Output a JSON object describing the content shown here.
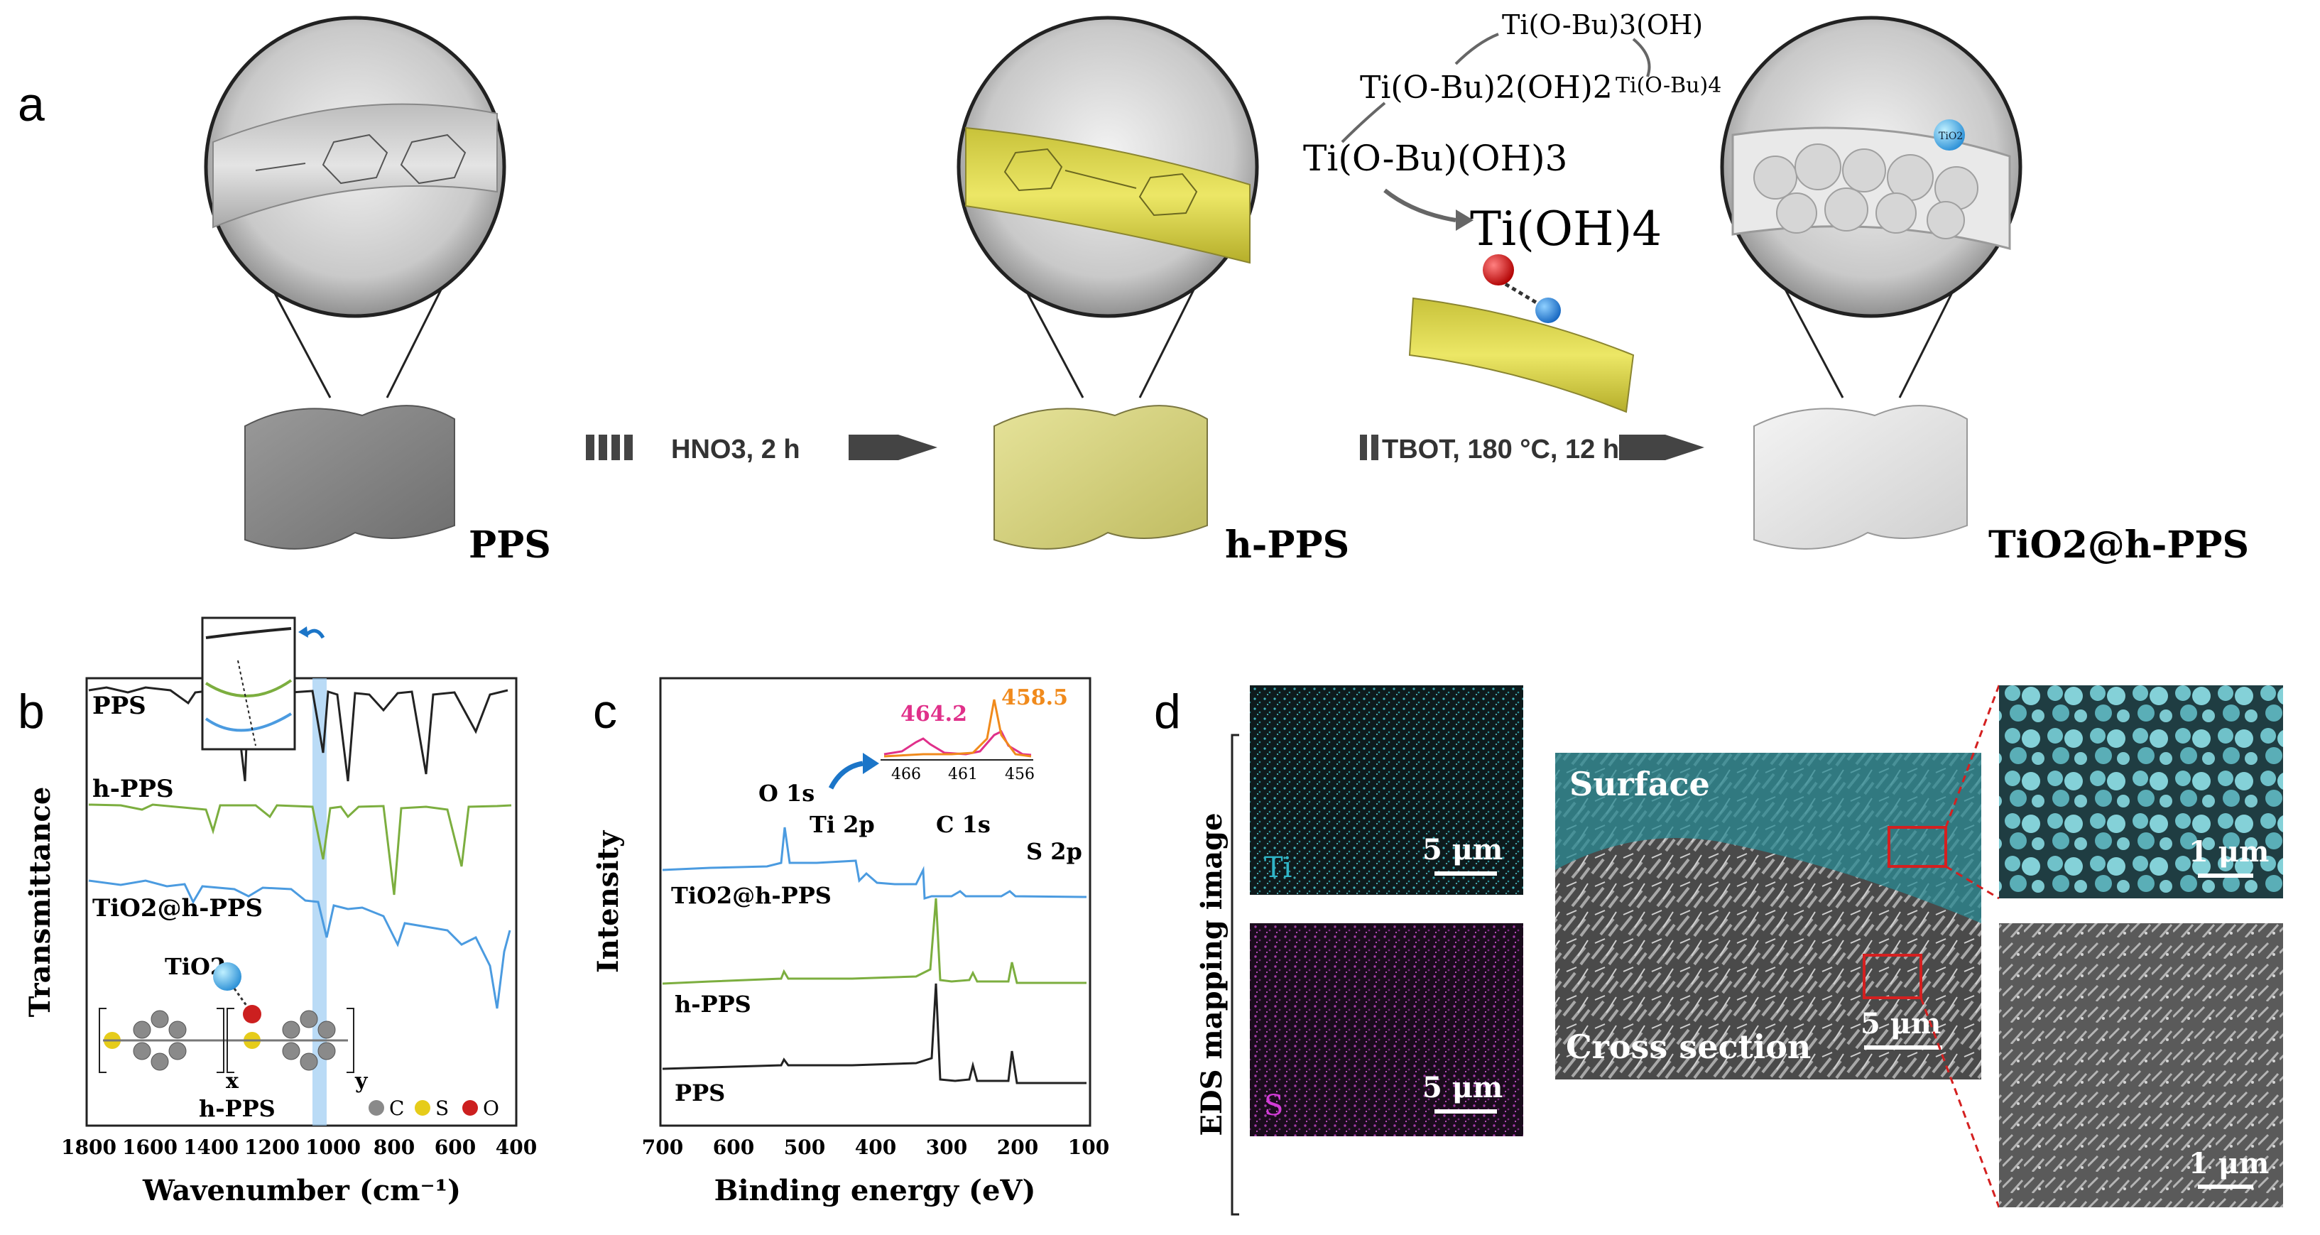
{
  "panel_a": {
    "label": "a",
    "stage_labels": {
      "pps": "PPS",
      "hpps": "h-PPS",
      "tio2_hpps": "TiO2@h-PPS"
    },
    "step1_text": "HNO3, 2 h",
    "step2_text": "TBOT, 180 °C, 12 h",
    "hydrolysis": {
      "oh1": "Ti(O-Bu)3(OH)",
      "oh2": "Ti(O-Bu)2(OH)2",
      "tbot": "Ti(O-Bu)4",
      "oh3": "Ti(O-Bu)(OH)3",
      "oh4": "Ti(OH)4"
    },
    "bubble_tio2": "TiO2"
  },
  "panel_b": {
    "label": "b",
    "ylabel": "Transmittance",
    "xlabel": "Wavenumber (cm⁻¹)",
    "xticks": [
      "1800",
      "1600",
      "1400",
      "1200",
      "1000",
      "800",
      "600",
      "400"
    ],
    "series_labels": [
      "PPS",
      "h-PPS",
      "TiO2@h-PPS"
    ],
    "structure_labels": {
      "tio2": "TiO2",
      "x": "x",
      "y": "y",
      "name": "h-PPS"
    },
    "legend": [
      "C",
      "S",
      "O"
    ],
    "colors": {
      "pps": "#222222",
      "hpps": "#7cae3f",
      "tio2": "#4b9be0",
      "C": "#8a8a8a",
      "S": "#e6cc1a",
      "O": "#cc1f1f"
    }
  },
  "panel_c": {
    "label": "c",
    "ylabel": "Intensity",
    "xlabel": "Binding energy (eV)",
    "xticks": [
      "700",
      "600",
      "500",
      "400",
      "300",
      "200",
      "100"
    ],
    "peaks": [
      "O 1s",
      "Ti 2p",
      "C 1s",
      "S 2p"
    ],
    "series_labels": [
      "TiO2@h-PPS",
      "h-PPS",
      "PPS"
    ],
    "inset": {
      "peak1": "464.2",
      "peak2": "458.5",
      "ticks": [
        "466",
        "461",
        "456"
      ]
    },
    "colors": {
      "pps": "#222222",
      "hpps": "#7cae3f",
      "tio2": "#4b9be0",
      "inset1": "#e0308a",
      "inset2": "#f08a1c"
    }
  },
  "panel_d": {
    "label": "d",
    "side_label": "EDS mapping image",
    "ti_label": "Ti",
    "s_label": "S",
    "scale_5": "5 μm",
    "scale_1": "1 μm",
    "surface": "Surface",
    "cross_section": "Cross section"
  }
}
